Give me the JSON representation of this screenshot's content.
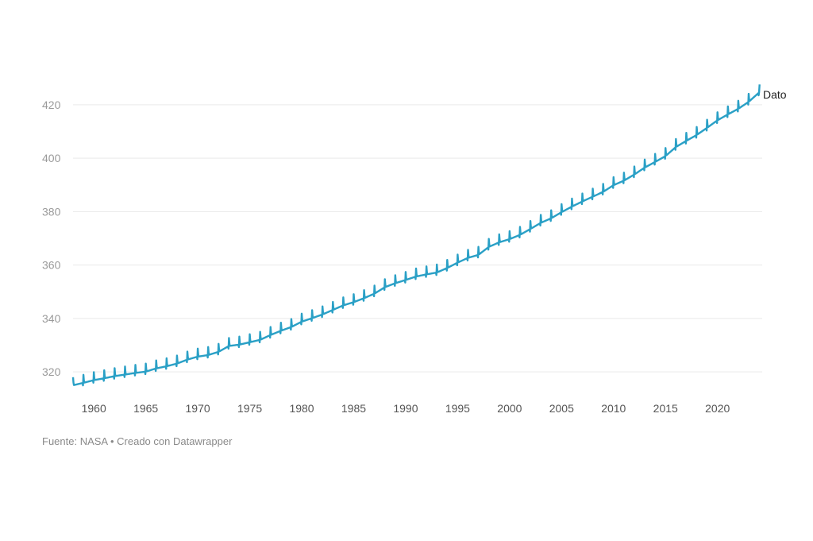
{
  "chart_data": {
    "type": "line",
    "xlim": [
      1958,
      2024.3
    ],
    "ylim": [
      312,
      428
    ],
    "y_ticks": [
      320,
      340,
      360,
      380,
      400,
      420
    ],
    "x_ticks": [
      1960,
      1965,
      1970,
      1975,
      1980,
      1985,
      1990,
      1995,
      2000,
      2005,
      2010,
      2015,
      2020
    ],
    "grid": true,
    "seasonal_amplitude": 3,
    "series": [
      {
        "name": "Dato",
        "color": "#2aa0c6",
        "x": [
          1958,
          1959,
          1960,
          1961,
          1962,
          1963,
          1964,
          1965,
          1966,
          1967,
          1968,
          1969,
          1970,
          1971,
          1972,
          1973,
          1974,
          1975,
          1976,
          1977,
          1978,
          1979,
          1980,
          1981,
          1982,
          1983,
          1984,
          1985,
          1986,
          1987,
          1988,
          1989,
          1990,
          1991,
          1992,
          1993,
          1994,
          1995,
          1996,
          1997,
          1998,
          1999,
          2000,
          2001,
          2002,
          2003,
          2004,
          2005,
          2006,
          2007,
          2008,
          2009,
          2010,
          2011,
          2012,
          2013,
          2014,
          2015,
          2016,
          2017,
          2018,
          2019,
          2020,
          2021,
          2022,
          2023,
          2024
        ],
        "y": [
          315.0,
          315.9,
          316.9,
          317.6,
          318.4,
          319.0,
          319.6,
          320.1,
          321.3,
          322.1,
          323.1,
          324.6,
          325.7,
          326.3,
          327.5,
          329.7,
          330.2,
          331.1,
          332.0,
          333.8,
          335.4,
          336.8,
          338.8,
          340.1,
          341.5,
          343.2,
          344.9,
          346.1,
          347.6,
          349.3,
          351.7,
          353.2,
          354.4,
          355.7,
          356.5,
          357.2,
          358.9,
          360.9,
          362.7,
          363.8,
          366.8,
          368.5,
          369.7,
          371.3,
          373.5,
          375.8,
          377.5,
          379.8,
          381.9,
          383.8,
          385.6,
          387.4,
          389.9,
          391.6,
          393.9,
          396.5,
          398.6,
          400.8,
          404.2,
          406.5,
          408.7,
          411.4,
          414.2,
          416.4,
          418.5,
          421.1,
          424.6
        ]
      }
    ]
  },
  "footer": {
    "text": "Fuente: NASA • Creado con Datawrapper"
  }
}
